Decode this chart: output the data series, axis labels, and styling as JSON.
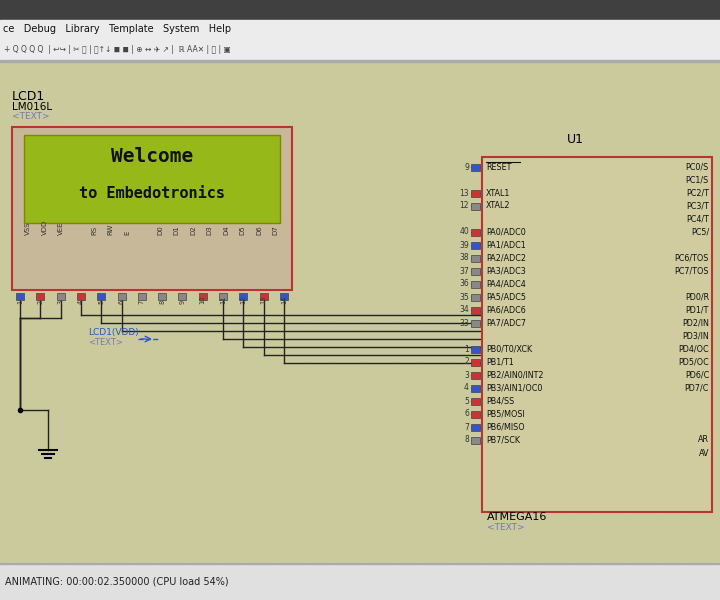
{
  "bg_color": "#caca9c",
  "title_bar_color": "#404040",
  "menu_bar_color": "#ececec",
  "status_bar_color": "#e0e0e0",
  "lcd_outer_bg": "#c8b89a",
  "lcd_outer_border": "#bb3333",
  "lcd_screen_bg": "#96b818",
  "lcd_text_color": "#111100",
  "lcd_label": "LCD1",
  "lcd_model": "LM016L",
  "lcd_text_tag": "<TEXT>",
  "lcd_line1": "Welcome",
  "lcd_line2": "to Embedotronics",
  "chip_bg": "#d0cca0",
  "chip_border": "#bb3333",
  "chip_label": "U1",
  "chip_name": "ATMEGA16",
  "chip_name_tag": "<TEXT>",
  "wire_color": "#222222",
  "vdd_label": "LCD1(VDD)",
  "status_text": "ANIMATING: 00:00:02.350000 (CPU load 54%)",
  "left_pins_data": [
    [
      "9",
      "RESET",
      0,
      "#3355cc"
    ],
    [
      "13",
      "XTAL1",
      2,
      "#cc3333"
    ],
    [
      "12",
      "XTAL2",
      3,
      "#888888"
    ],
    [
      "40",
      "PA0/ADC0",
      5,
      "#cc3333"
    ],
    [
      "39",
      "PA1/ADC1",
      6,
      "#3355cc"
    ],
    [
      "38",
      "PA2/ADC2",
      7,
      "#888888"
    ],
    [
      "37",
      "PA3/ADC3",
      8,
      "#888888"
    ],
    [
      "36",
      "PA4/ADC4",
      9,
      "#888888"
    ],
    [
      "35",
      "PA5/ADC5",
      10,
      "#888888"
    ],
    [
      "34",
      "PA6/ADC6",
      11,
      "#cc3333"
    ],
    [
      "33",
      "PA7/ADC7",
      12,
      "#888888"
    ],
    [
      "1",
      "PB0/T0/XCK",
      14,
      "#3355cc"
    ],
    [
      "2",
      "PB1/T1",
      15,
      "#cc3333"
    ],
    [
      "3",
      "PB2/AIN0/INT2",
      16,
      "#cc3333"
    ],
    [
      "4",
      "PB3/AIN1/OC0",
      17,
      "#3355cc"
    ],
    [
      "5",
      "PB4/SS",
      18,
      "#cc3333"
    ],
    [
      "6",
      "PB5/MOSI",
      19,
      "#cc3333"
    ],
    [
      "7",
      "PB6/MISO",
      20,
      "#3355cc"
    ],
    [
      "8",
      "PB7/SCK",
      21,
      "#888888"
    ]
  ],
  "right_pin_labels": [
    "PC0/S",
    "PC1/S",
    "PC2/T",
    "PC3/T",
    "PC4/T",
    "PC5/",
    "PC6/TOS",
    "PC7/TOS",
    "PD0/R",
    "PD1/T",
    "PD2/IN",
    "PD3/IN",
    "PD4/OC",
    "PD5/OC",
    "PD6/C",
    "PD7/C",
    "",
    "AR",
    "AV"
  ],
  "lcd_pin_colors": [
    "#3355cc",
    "#cc3333",
    "#888888",
    "#cc3333",
    "#3355cc",
    "#888888",
    "#888888",
    "#888888",
    "#888888",
    "#cc3333",
    "#888888",
    "#3355cc",
    "#cc3333",
    "#3355cc"
  ]
}
